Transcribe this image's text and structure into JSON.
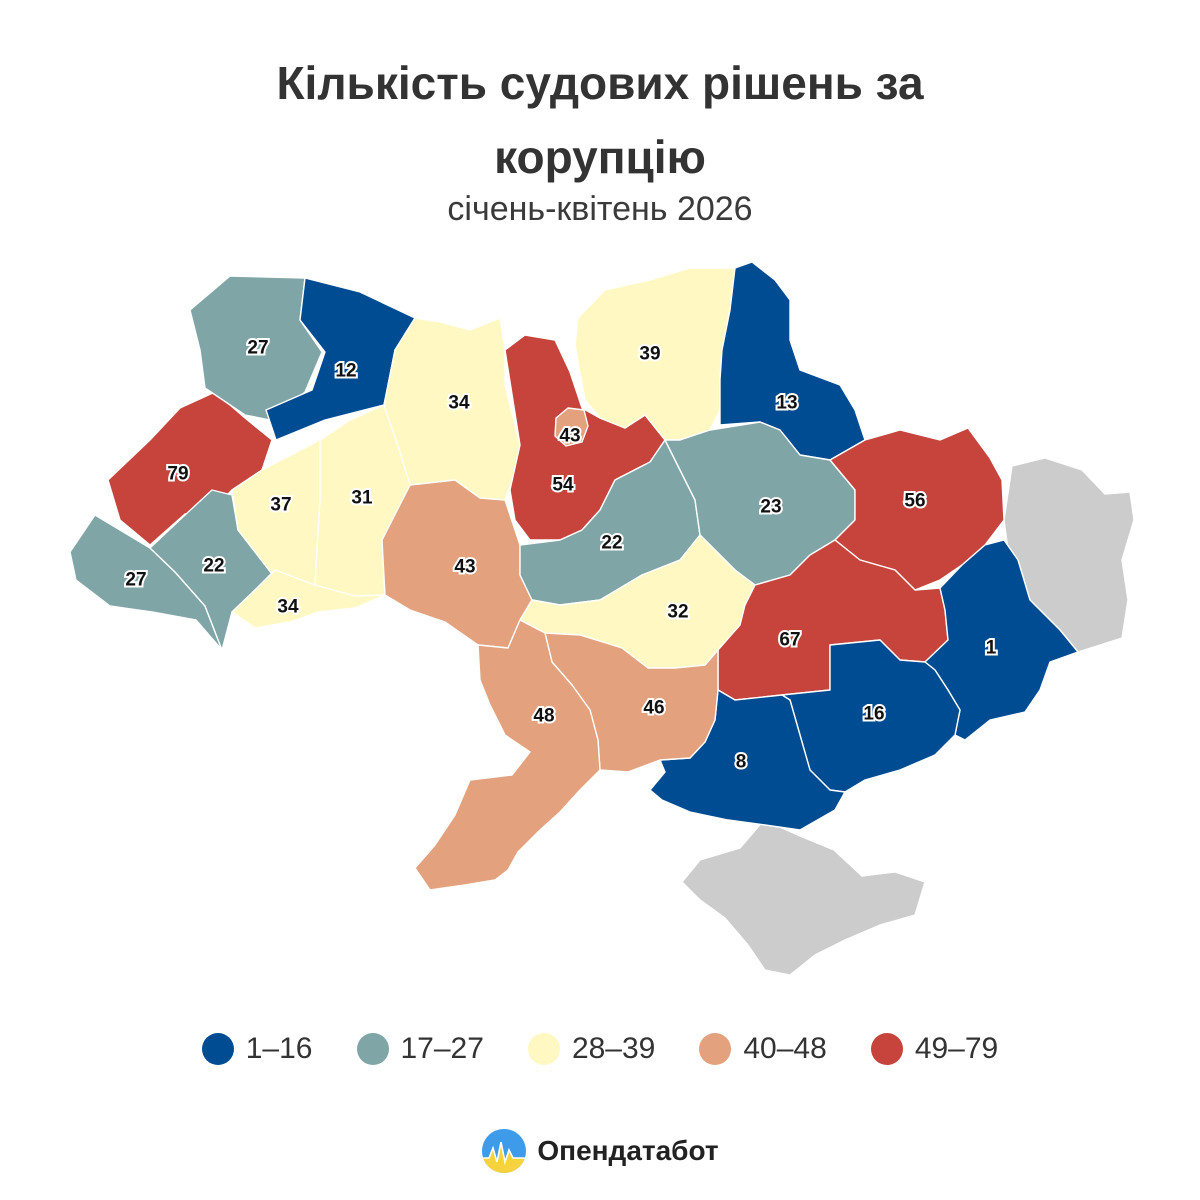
{
  "title_lines": [
    "Кількість судових рішень за",
    "корупцію"
  ],
  "subtitle": "січень-квітень 2026",
  "colors": {
    "class_1": "#004c92",
    "class_2": "#7fa5a6",
    "class_3": "#fff8c2",
    "class_4": "#e3a17e",
    "class_5": "#c6443b",
    "occupied": "#cccccc"
  },
  "legend": [
    {
      "label": "1–16",
      "color": "#004c92"
    },
    {
      "label": "17–27",
      "color": "#7fa5a6"
    },
    {
      "label": "28–39",
      "color": "#fff8c2"
    },
    {
      "label": "40–48",
      "color": "#e3a17e"
    },
    {
      "label": "49–79",
      "color": "#c6443b"
    }
  ],
  "regions": [
    {
      "name": "Волинська",
      "value": 27
    },
    {
      "name": "Рівненська",
      "value": 12
    },
    {
      "name": "Житомирська",
      "value": 34
    },
    {
      "name": "Київська",
      "value": 54
    },
    {
      "name": "м. Київ",
      "value": 43
    },
    {
      "name": "Чернігівська",
      "value": 39
    },
    {
      "name": "Сумська",
      "value": 13
    },
    {
      "name": "Львівська",
      "value": 79
    },
    {
      "name": "Тернопільська",
      "value": 37
    },
    {
      "name": "Хмельницька",
      "value": 31
    },
    {
      "name": "Вінницька",
      "value": 43
    },
    {
      "name": "Черкаська",
      "value": 22
    },
    {
      "name": "Полтавська",
      "value": 23
    },
    {
      "name": "Харківська",
      "value": 56
    },
    {
      "name": "Закарпатська",
      "value": 27
    },
    {
      "name": "Івано-Франківська",
      "value": 22
    },
    {
      "name": "Чернівецька",
      "value": 34
    },
    {
      "name": "Кіровоградська",
      "value": 32
    },
    {
      "name": "Дніпропетровська",
      "value": 67
    },
    {
      "name": "Донецька",
      "value": 1
    },
    {
      "name": "Запорізька",
      "value": 16
    },
    {
      "name": "Херсонська",
      "value": 8
    },
    {
      "name": "Миколаївська",
      "value": 46
    },
    {
      "name": "Одеська",
      "value": 48
    }
  ],
  "brand": {
    "name": "Опендатабот"
  }
}
